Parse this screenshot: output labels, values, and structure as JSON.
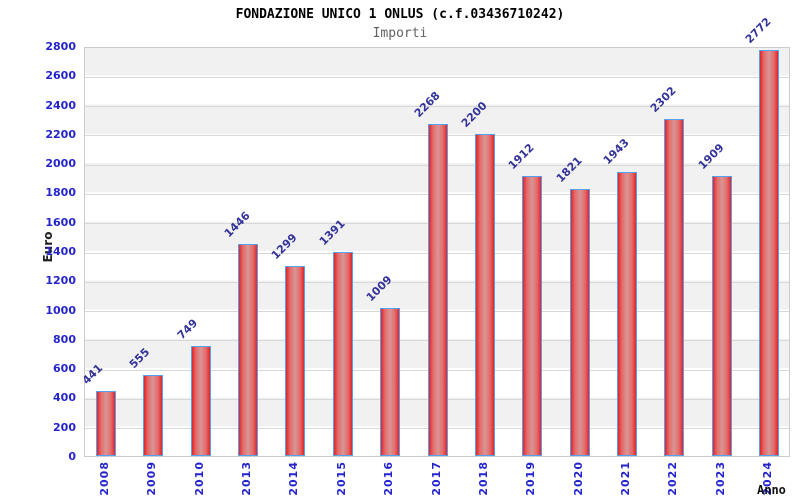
{
  "page": {
    "title": "FONDAZIONE UNICO 1 ONLUS (c.f.03436710242)",
    "subtitle": "Importi"
  },
  "chart_data": {
    "type": "bar",
    "title": "FONDAZIONE UNICO 1 ONLUS (c.f.03436710242)",
    "subtitle": "Importi",
    "xlabel": "Anno",
    "ylabel": "Euro",
    "categories": [
      "2008",
      "2009",
      "2010",
      "2013",
      "2014",
      "2015",
      "2016",
      "2017",
      "2018",
      "2019",
      "2020",
      "2021",
      "2022",
      "2023",
      "2024"
    ],
    "values": [
      441,
      555,
      749,
      1446,
      1299,
      1391,
      1009,
      2268,
      2200,
      1912,
      1821,
      1943,
      2302,
      1909,
      2772
    ],
    "ylim": [
      0,
      2800
    ],
    "ytick_step": 200,
    "grid": "horizontal-bands",
    "legend_position": "none",
    "value_labels": "rotated-45-above-bars",
    "category_labels": "rotated-90-vertical",
    "colors": {
      "bar_fill_edge": "#e02626",
      "bar_fill_center": "#d99595",
      "bar_border": "#55a0f0",
      "axis_tick_label": "#2424cc",
      "value_label": "#333399",
      "band_light": "#ffffff",
      "band_gray": "#f1f1f1",
      "gridline": "#d8d8d8",
      "plot_border": "#cccccc",
      "title_color": "#000000",
      "subtitle_color": "#636363",
      "axis_title_color": "#222222",
      "background": "#ffffff"
    }
  }
}
